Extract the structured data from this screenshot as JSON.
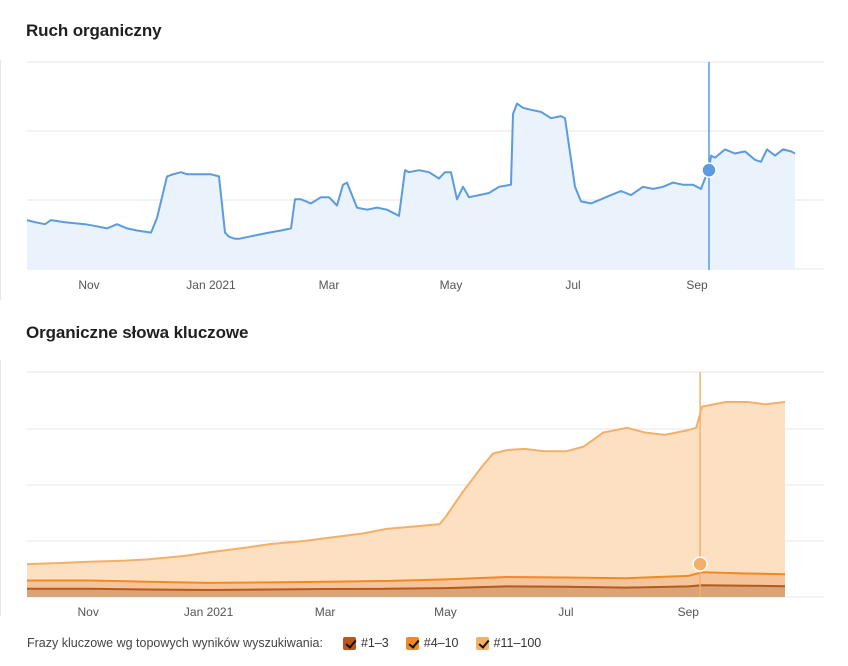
{
  "chart_data": [
    {
      "type": "line",
      "title": "Ruch organiczny",
      "x_ticks": [
        "Nov",
        "Jan 2021",
        "Mar",
        "May",
        "Jul",
        "Sep"
      ],
      "x_tick_dates": [
        "2020-11-01",
        "2021-01-01",
        "2021-03-01",
        "2021-05-01",
        "2021-07-01",
        "2021-09-01"
      ],
      "x_range": [
        "2020-10-01",
        "2021-10-20"
      ],
      "y_range": [
        0,
        1
      ],
      "grid": true,
      "highlight_date": "2021-09-07",
      "color": "#5b9bde",
      "series": [
        {
          "x": [
            "2020-10-01",
            "2020-10-05",
            "2020-10-10",
            "2020-10-13",
            "2020-10-20",
            "2020-10-30",
            "2020-11-05",
            "2020-11-10",
            "2020-11-15",
            "2020-11-20",
            "2020-11-25",
            "2020-12-02",
            "2020-12-05",
            "2020-12-10",
            "2020-12-13",
            "2020-12-17",
            "2020-12-20",
            "2020-12-25",
            "2021-01-01",
            "2021-01-05",
            "2021-01-08",
            "2021-01-10",
            "2021-01-13",
            "2021-01-15",
            "2021-01-20",
            "2021-01-25",
            "2021-01-30",
            "2021-02-05",
            "2021-02-10",
            "2021-02-12",
            "2021-02-15",
            "2021-02-20",
            "2021-02-25",
            "2021-03-01",
            "2021-03-05",
            "2021-03-08",
            "2021-03-10",
            "2021-03-15",
            "2021-03-20",
            "2021-03-25",
            "2021-03-30",
            "2021-04-05",
            "2021-04-08",
            "2021-04-10",
            "2021-04-15",
            "2021-04-20",
            "2021-04-25",
            "2021-04-28",
            "2021-05-01",
            "2021-05-04",
            "2021-05-07",
            "2021-05-10",
            "2021-05-15",
            "2021-05-20",
            "2021-05-25",
            "2021-05-31",
            "2021-06-01",
            "2021-06-03",
            "2021-06-06",
            "2021-06-10",
            "2021-06-15",
            "2021-06-20",
            "2021-06-25",
            "2021-06-27",
            "2021-07-02",
            "2021-07-05",
            "2021-07-10",
            "2021-07-15",
            "2021-07-20",
            "2021-07-25",
            "2021-07-30",
            "2021-08-05",
            "2021-08-10",
            "2021-08-15",
            "2021-08-20",
            "2021-08-25",
            "2021-08-30",
            "2021-09-03",
            "2021-09-05",
            "2021-09-07",
            "2021-09-08",
            "2021-09-10",
            "2021-09-15",
            "2021-09-20",
            "2021-09-25",
            "2021-09-30",
            "2021-10-03",
            "2021-10-06",
            "2021-10-10",
            "2021-10-14",
            "2021-10-18",
            "2021-10-20"
          ],
          "y": [
            0.24,
            0.23,
            0.22,
            0.24,
            0.23,
            0.22,
            0.21,
            0.2,
            0.22,
            0.2,
            0.19,
            0.18,
            0.25,
            0.45,
            0.46,
            0.47,
            0.46,
            0.46,
            0.46,
            0.45,
            0.18,
            0.16,
            0.15,
            0.15,
            0.16,
            0.17,
            0.18,
            0.19,
            0.2,
            0.34,
            0.34,
            0.32,
            0.35,
            0.35,
            0.31,
            0.41,
            0.42,
            0.3,
            0.29,
            0.3,
            0.29,
            0.26,
            0.48,
            0.47,
            0.48,
            0.47,
            0.44,
            0.47,
            0.47,
            0.34,
            0.4,
            0.35,
            0.36,
            0.37,
            0.4,
            0.41,
            0.75,
            0.8,
            0.78,
            0.77,
            0.76,
            0.73,
            0.74,
            0.73,
            0.4,
            0.33,
            0.32,
            0.34,
            0.36,
            0.38,
            0.36,
            0.4,
            0.39,
            0.4,
            0.42,
            0.41,
            0.41,
            0.39,
            0.44,
            0.48,
            0.55,
            0.54,
            0.58,
            0.56,
            0.57,
            0.53,
            0.52,
            0.58,
            0.55,
            0.58,
            0.57,
            0.56
          ]
        }
      ]
    },
    {
      "type": "area",
      "title": "Organiczne słowa kluczowe",
      "x_ticks": [
        "Nov",
        "Jan 2021",
        "Mar",
        "May",
        "Jul",
        "Sep"
      ],
      "x_tick_dates": [
        "2020-11-01",
        "2021-01-01",
        "2021-03-01",
        "2021-05-01",
        "2021-07-01",
        "2021-09-01"
      ],
      "x_range": [
        "2020-10-01",
        "2021-10-20"
      ],
      "y_range": [
        0,
        1
      ],
      "grid": true,
      "highlight_date": "2021-09-07",
      "stacked": true,
      "legend_caption": "Frazy kluczowe wg topowych wyników wyszukiwania:",
      "series": [
        {
          "name": "#1–3",
          "color": "#b9581b",
          "fill": "#d9a578",
          "x": [
            "2020-10-01",
            "2020-11-01",
            "2020-12-01",
            "2021-01-01",
            "2021-02-01",
            "2021-03-01",
            "2021-04-01",
            "2021-05-01",
            "2021-06-01",
            "2021-07-01",
            "2021-08-01",
            "2021-08-20",
            "2021-09-01",
            "2021-09-08",
            "2021-10-01",
            "2021-10-20"
          ],
          "y": [
            0.035,
            0.035,
            0.032,
            0.03,
            0.032,
            0.034,
            0.035,
            0.038,
            0.045,
            0.044,
            0.04,
            0.043,
            0.045,
            0.05,
            0.048,
            0.046
          ]
        },
        {
          "name": "#4–10",
          "color": "#f08a24",
          "fill": "#f5c49a",
          "x": [
            "2020-10-01",
            "2020-11-01",
            "2020-12-01",
            "2021-01-01",
            "2021-02-01",
            "2021-03-01",
            "2021-04-01",
            "2021-05-01",
            "2021-06-01",
            "2021-07-01",
            "2021-08-01",
            "2021-08-20",
            "2021-09-01",
            "2021-09-08",
            "2021-10-01",
            "2021-10-20"
          ],
          "y": [
            0.07,
            0.07,
            0.065,
            0.06,
            0.062,
            0.065,
            0.068,
            0.075,
            0.085,
            0.083,
            0.08,
            0.086,
            0.09,
            0.105,
            0.1,
            0.097
          ]
        },
        {
          "name": "#11–100",
          "color": "#f4b068",
          "fill": "#fde0c2",
          "x": [
            "2020-10-01",
            "2020-10-20",
            "2020-11-01",
            "2020-11-20",
            "2020-12-01",
            "2020-12-20",
            "2021-01-01",
            "2021-01-20",
            "2021-02-01",
            "2021-02-20",
            "2021-03-01",
            "2021-03-20",
            "2021-04-01",
            "2021-04-15",
            "2021-04-28",
            "2021-05-01",
            "2021-05-10",
            "2021-05-20",
            "2021-05-25",
            "2021-06-01",
            "2021-06-10",
            "2021-06-20",
            "2021-07-01",
            "2021-07-10",
            "2021-07-20",
            "2021-08-01",
            "2021-08-10",
            "2021-08-20",
            "2021-09-01",
            "2021-09-05",
            "2021-09-08",
            "2021-09-20",
            "2021-10-01",
            "2021-10-10",
            "2021-10-20"
          ],
          "y": [
            0.14,
            0.145,
            0.15,
            0.155,
            0.16,
            0.175,
            0.19,
            0.21,
            0.225,
            0.24,
            0.25,
            0.27,
            0.29,
            0.3,
            0.31,
            0.34,
            0.45,
            0.56,
            0.61,
            0.625,
            0.63,
            0.62,
            0.62,
            0.64,
            0.7,
            0.72,
            0.7,
            0.69,
            0.71,
            0.72,
            0.81,
            0.83,
            0.83,
            0.82,
            0.83
          ]
        }
      ]
    }
  ]
}
